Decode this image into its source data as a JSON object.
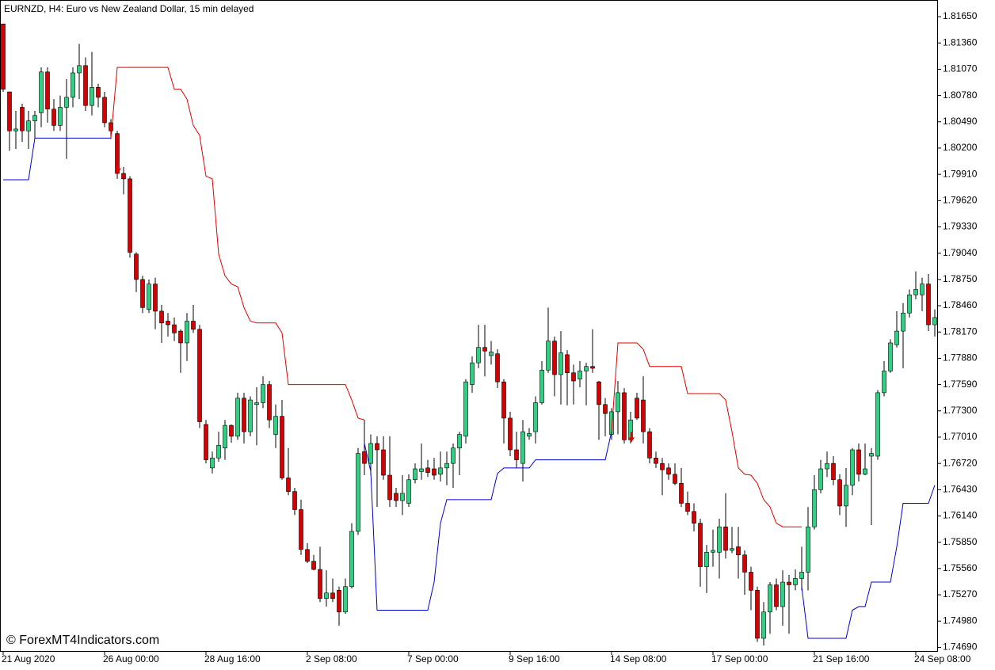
{
  "chart_data": {
    "type": "candlestick",
    "title": "EURNZD, H4:  Euro vs New Zealand Dollar, 15 min delayed",
    "watermark": "© ForexMT4Indicators.com",
    "categories": [
      "21 Aug 2020",
      null,
      null,
      null,
      null,
      null,
      null,
      null,
      null,
      null,
      null,
      null,
      null,
      null,
      null,
      null,
      "26 Aug 00:00",
      null,
      null,
      null,
      null,
      null,
      null,
      null,
      null,
      null,
      null,
      null,
      null,
      null,
      null,
      null,
      "28 Aug 16:00",
      null,
      null,
      null,
      null,
      null,
      null,
      null,
      null,
      null,
      null,
      null,
      null,
      null,
      null,
      null,
      "2 Sep 08:00",
      null,
      null,
      null,
      null,
      null,
      null,
      null,
      null,
      null,
      null,
      null,
      null,
      null,
      null,
      null,
      "7 Sep 00:00",
      null,
      null,
      null,
      null,
      null,
      null,
      null,
      null,
      null,
      null,
      null,
      null,
      null,
      null,
      null,
      "9 Sep 16:00",
      null,
      null,
      null,
      null,
      null,
      null,
      null,
      null,
      null,
      null,
      null,
      null,
      null,
      null,
      null,
      "14 Sep 08:00",
      null,
      null,
      null,
      null,
      null,
      null,
      null,
      null,
      null,
      null,
      null,
      null,
      null,
      null,
      null,
      "17 Sep 00:00",
      null,
      null,
      null,
      null,
      null,
      null,
      null,
      null,
      null,
      null,
      null,
      null,
      null,
      null,
      null,
      "21 Sep 16:00",
      null,
      null,
      null,
      null,
      null,
      null,
      null,
      null,
      null,
      null,
      null,
      null,
      null,
      null,
      null,
      "24 Sep 08:00",
      null,
      null,
      null
    ],
    "open": [
      1.8157,
      1.8082,
      1.8039,
      1.8065,
      1.8039,
      1.805,
      1.8059,
      1.8104,
      1.8063,
      1.8045,
      1.8065,
      1.8076,
      1.8103,
      1.8111,
      1.8067,
      1.8087,
      1.8076,
      1.8048,
      1.8036,
      1.7992,
      1.7986,
      1.7903,
      1.7875,
      1.7842,
      1.787,
      1.784,
      1.7829,
      1.7825,
      1.7818,
      1.7805,
      1.7829,
      1.782,
      1.7715,
      1.7667,
      1.7678,
      1.7689,
      1.7714,
      1.7702,
      1.7744,
      1.7707,
      1.7737,
      1.7739,
      1.7759,
      1.7704,
      1.7724,
      1.7656,
      1.7641,
      1.7621,
      1.7577,
      1.7564,
      1.7555,
      1.7523,
      1.7529,
      1.7532,
      1.7508,
      1.7536,
      1.7597,
      1.7685,
      1.7672,
      1.7694,
      1.7687,
      1.7659,
      1.7639,
      1.7631,
      1.7628,
      1.7654,
      1.7663,
      1.7667,
      1.7666,
      1.766,
      1.7667,
      1.7672,
      1.7689,
      1.7702,
      1.7759,
      1.7783,
      1.78,
      1.7791,
      1.7793,
      1.7762,
      1.7722,
      1.7687,
      1.7672,
      1.7702,
      1.7707,
      1.7739,
      1.7775,
      1.7807,
      1.777,
      1.7792,
      1.7772,
      1.7765,
      1.7774,
      1.7779,
      1.7762,
      1.7737,
      1.7704,
      1.7729,
      1.775,
      1.7698,
      1.7744,
      1.7742,
      1.7707,
      1.7678,
      1.7672,
      1.7667,
      1.766,
      1.765,
      1.7628,
      1.7619,
      1.7606,
      1.7558,
      1.7574,
      1.7574,
      1.7602,
      1.7576,
      1.758,
      1.7571,
      1.7552,
      1.7532,
      1.7479,
      1.7508,
      1.7538,
      1.7514,
      1.7541,
      1.7538,
      1.7545,
      1.7552,
      1.7602,
      1.7643,
      1.7666,
      1.7672,
      1.7654,
      1.7625,
      1.7648,
      1.7687,
      1.766,
      1.768,
      1.768,
      1.775,
      1.7774,
      1.7803,
      1.7818,
      1.7838,
      1.7858,
      1.7858,
      1.787,
      1.7825
    ],
    "high": [
      1.8157,
      1.8082,
      1.8061,
      1.8069,
      1.8061,
      1.8061,
      1.8109,
      1.8109,
      1.8074,
      1.8078,
      1.8096,
      1.8109,
      1.8135,
      1.812,
      1.8126,
      1.8091,
      1.8082,
      1.8052,
      1.8039,
      1.7999,
      1.7989,
      1.7905,
      1.7879,
      1.7875,
      1.7877,
      1.7847,
      1.7838,
      1.7833,
      1.782,
      1.7838,
      1.7847,
      1.7825,
      1.772,
      1.7685,
      1.7707,
      1.772,
      1.7715,
      1.775,
      1.775,
      1.7746,
      1.7756,
      1.7768,
      1.7763,
      1.7737,
      1.7742,
      1.7689,
      1.7645,
      1.7632,
      1.7584,
      1.7571,
      1.758,
      1.7554,
      1.7545,
      1.7536,
      1.7545,
      1.7606,
      1.7689,
      1.772,
      1.7704,
      1.7702,
      1.7702,
      1.7702,
      1.7645,
      1.7659,
      1.766,
      1.7672,
      1.7694,
      1.7676,
      1.7678,
      1.7685,
      1.7685,
      1.7694,
      1.7707,
      1.7765,
      1.779,
      1.7825,
      1.7825,
      1.7807,
      1.7798,
      1.7765,
      1.7729,
      1.7707,
      1.772,
      1.7711,
      1.7746,
      1.7785,
      1.7844,
      1.7812,
      1.7818,
      1.7797,
      1.7781,
      1.7785,
      1.7783,
      1.782,
      1.7763,
      1.7744,
      1.7733,
      1.7763,
      1.7755,
      1.7729,
      1.775,
      1.7768,
      1.7711,
      1.7685,
      1.7678,
      1.7672,
      1.7672,
      1.7667,
      1.7641,
      1.7628,
      1.7611,
      1.7582,
      1.7599,
      1.7611,
      1.7639,
      1.7602,
      1.7602,
      1.7576,
      1.7558,
      1.7536,
      1.7519,
      1.7541,
      1.7545,
      1.7554,
      1.7549,
      1.7555,
      1.758,
      1.7624,
      1.7659,
      1.7676,
      1.7685,
      1.768,
      1.766,
      1.7667,
      1.7689,
      1.7694,
      1.7694,
      1.7689,
      1.7753,
      1.7785,
      1.7809,
      1.784,
      1.7849,
      1.7864,
      1.7884,
      1.7877,
      1.7881,
      1.7842
    ],
    "low": [
      1.8082,
      1.8017,
      1.8019,
      1.8027,
      1.8019,
      1.803,
      1.8043,
      1.8048,
      1.8039,
      1.8039,
      1.8008,
      1.8065,
      1.8074,
      1.8061,
      1.8056,
      1.8065,
      1.8043,
      1.803,
      1.7986,
      1.7969,
      1.7899,
      1.7861,
      1.7838,
      1.7838,
      1.782,
      1.7805,
      1.7812,
      1.7807,
      1.7772,
      1.7785,
      1.7816,
      1.7711,
      1.7672,
      1.7661,
      1.7674,
      1.7676,
      1.7695,
      1.7698,
      1.7694,
      1.7702,
      1.7692,
      1.7733,
      1.7711,
      1.7689,
      1.7654,
      1.7637,
      1.7615,
      1.7571,
      1.7562,
      1.7554,
      1.7519,
      1.7514,
      1.7519,
      1.7493,
      1.7506,
      1.7534,
      1.7593,
      1.7659,
      1.7659,
      1.7624,
      1.7654,
      1.7624,
      1.7624,
      1.7615,
      1.7624,
      1.765,
      1.7654,
      1.7657,
      1.7654,
      1.7652,
      1.7648,
      1.7645,
      1.7659,
      1.7694,
      1.775,
      1.7777,
      1.7768,
      1.7781,
      1.7755,
      1.7694,
      1.768,
      1.7667,
      1.7652,
      1.7698,
      1.7694,
      1.7737,
      1.7772,
      1.7746,
      1.7737,
      1.7736,
      1.7737,
      1.7756,
      1.7736,
      1.7772,
      1.7698,
      1.7702,
      1.7698,
      1.7704,
      1.7694,
      1.7694,
      1.772,
      1.7694,
      1.7672,
      1.7667,
      1.7637,
      1.7654,
      1.7648,
      1.7624,
      1.7615,
      1.7597,
      1.7536,
      1.7529,
      1.7558,
      1.7545,
      1.7567,
      1.7573,
      1.7545,
      1.7527,
      1.751,
      1.7475,
      1.7471,
      1.7484,
      1.751,
      1.7493,
      1.7484,
      1.7532,
      1.7532,
      1.7532,
      1.7599,
      1.7639,
      1.7657,
      1.7648,
      1.7615,
      1.7602,
      1.7637,
      1.7652,
      1.7659,
      1.7604,
      1.7676,
      1.7746,
      1.7772,
      1.78,
      1.7777,
      1.7833,
      1.7853,
      1.784,
      1.7818,
      1.7812
    ],
    "close": [
      1.8085,
      1.8039,
      1.8041,
      1.8039,
      1.805,
      1.8056,
      1.8104,
      1.8063,
      1.8045,
      1.8065,
      1.8076,
      1.8103,
      1.8111,
      1.8067,
      1.8087,
      1.8076,
      1.8048,
      1.8039,
      1.7992,
      1.7986,
      1.7905,
      1.7875,
      1.7844,
      1.787,
      1.784,
      1.7827,
      1.7825,
      1.7816,
      1.7805,
      1.7829,
      1.782,
      1.7718,
      1.7676,
      1.7678,
      1.7692,
      1.7714,
      1.7702,
      1.7744,
      1.7707,
      1.7742,
      1.7739,
      1.7759,
      1.772,
      1.7724,
      1.7656,
      1.7641,
      1.7621,
      1.7577,
      1.7564,
      1.7555,
      1.7523,
      1.7529,
      1.7523,
      1.7508,
      1.7536,
      1.7597,
      1.7683,
      1.7672,
      1.7694,
      1.7687,
      1.7659,
      1.7632,
      1.7631,
      1.7639,
      1.7654,
      1.7666,
      1.7666,
      1.7662,
      1.7659,
      1.7667,
      1.7672,
      1.7689,
      1.7704,
      1.7762,
      1.7783,
      1.78,
      1.7796,
      1.7795,
      1.7762,
      1.7722,
      1.7687,
      1.7676,
      1.7707,
      1.7705,
      1.7739,
      1.7775,
      1.7807,
      1.777,
      1.7794,
      1.7772,
      1.7763,
      1.7774,
      1.7779,
      1.7777,
      1.7737,
      1.7727,
      1.7729,
      1.775,
      1.7698,
      1.772,
      1.7722,
      1.7707,
      1.7678,
      1.7672,
      1.7665,
      1.766,
      1.765,
      1.7628,
      1.7619,
      1.7606,
      1.7558,
      1.7574,
      1.7576,
      1.7602,
      1.7576,
      1.7578,
      1.7571,
      1.7552,
      1.7532,
      1.7479,
      1.7508,
      1.7538,
      1.7514,
      1.7541,
      1.7538,
      1.7545,
      1.7552,
      1.7602,
      1.7643,
      1.7666,
      1.7672,
      1.7654,
      1.7625,
      1.7648,
      1.7687,
      1.766,
      1.7666,
      1.7683,
      1.775,
      1.7774,
      1.7805,
      1.7818,
      1.7838,
      1.7858,
      1.7864,
      1.787,
      1.7825,
      1.7833
    ],
    "up_color": "#2fd180",
    "down_color": "#d60000",
    "wick_color": "#000000",
    "upper_line": {
      "color": "#e00000",
      "values": [
        null,
        null,
        null,
        null,
        null,
        null,
        null,
        null,
        null,
        null,
        null,
        null,
        null,
        null,
        null,
        null,
        null,
        1.8031,
        1.8109,
        1.8109,
        1.8109,
        1.8109,
        1.8109,
        1.8109,
        1.8109,
        1.8109,
        1.8109,
        1.8085,
        1.8085,
        1.8074,
        1.8045,
        1.8034,
        1.7989,
        1.7986,
        1.7903,
        1.7879,
        1.787,
        1.7867,
        1.7844,
        1.7829,
        1.7827,
        1.7827,
        1.7827,
        1.7827,
        1.7816,
        1.7759,
        1.7759,
        1.7759,
        1.7759,
        1.7759,
        1.7759,
        1.7759,
        1.7759,
        1.7759,
        1.7759,
        1.7742,
        1.7722,
        1.772,
        null,
        null,
        null,
        null,
        null,
        null,
        null,
        null,
        null,
        null,
        null,
        null,
        null,
        null,
        null,
        null,
        null,
        null,
        null,
        null,
        null,
        null,
        null,
        null,
        null,
        null,
        null,
        null,
        null,
        null,
        null,
        null,
        null,
        null,
        null,
        null,
        null,
        null,
        1.7707,
        1.7805,
        1.7805,
        1.7805,
        1.7805,
        1.7798,
        1.7779,
        1.7779,
        1.7779,
        1.7779,
        1.7779,
        1.7779,
        1.7749,
        1.7749,
        1.7749,
        1.7749,
        1.7749,
        1.7749,
        1.7742,
        1.7707,
        1.7667,
        1.766,
        1.7659,
        1.765,
        1.7632,
        1.7624,
        1.7606,
        1.7602,
        1.7602,
        1.7602,
        1.7602,
        null,
        null,
        null,
        null,
        null,
        null,
        null,
        null,
        null,
        null,
        null,
        null,
        null,
        null,
        null,
        null,
        null,
        null,
        null,
        null,
        null
      ]
    },
    "lower_line": {
      "color": "#0000d0",
      "values": [
        1.7985,
        1.7985,
        1.7985,
        1.7985,
        1.7985,
        1.8031,
        1.8031,
        1.8031,
        1.8031,
        1.8031,
        1.8031,
        1.8031,
        1.8031,
        1.8031,
        1.8031,
        1.8031,
        1.8031,
        1.8031,
        null,
        null,
        null,
        null,
        null,
        null,
        null,
        null,
        null,
        null,
        null,
        null,
        null,
        null,
        null,
        null,
        null,
        null,
        null,
        null,
        null,
        null,
        null,
        null,
        null,
        null,
        null,
        null,
        null,
        null,
        null,
        null,
        null,
        null,
        null,
        null,
        null,
        null,
        null,
        1.7694,
        1.7663,
        1.751,
        1.751,
        1.751,
        1.751,
        1.751,
        1.751,
        1.751,
        1.751,
        1.751,
        1.7541,
        1.7606,
        1.7632,
        1.7632,
        1.7632,
        1.7632,
        1.7632,
        1.7632,
        1.7632,
        1.7632,
        1.7661,
        1.7667,
        1.7667,
        1.7667,
        1.7667,
        1.7667,
        1.7676,
        1.7676,
        1.7676,
        1.7676,
        1.7676,
        1.7676,
        1.7676,
        1.7676,
        1.7676,
        1.7676,
        1.7676,
        1.7676,
        1.7707,
        null,
        null,
        null,
        null,
        null,
        null,
        null,
        null,
        null,
        null,
        null,
        null,
        null,
        null,
        null,
        null,
        null,
        null,
        null,
        null,
        null,
        null,
        null,
        null,
        null,
        null,
        null,
        null,
        null,
        1.7536,
        1.7479,
        1.7479,
        1.7479,
        1.7479,
        1.7479,
        1.7479,
        1.7479,
        1.751,
        1.7514,
        1.7514,
        1.7541,
        1.7541,
        1.7541,
        1.7541,
        1.758,
        1.7628,
        1.7628,
        1.7628,
        1.7628,
        1.7628,
        1.7648
      ]
    },
    "arrows": {
      "color": "#e00000",
      "values": [
        null,
        null,
        null,
        null,
        null,
        null,
        null,
        null,
        null,
        null,
        null,
        null,
        null,
        null,
        null,
        null,
        null,
        null,
        1.7995,
        null,
        null,
        null,
        null,
        null,
        null,
        null,
        null,
        null,
        null,
        null,
        null,
        null,
        null,
        null,
        null,
        null,
        null,
        null,
        null,
        null,
        null,
        null,
        null,
        null,
        null,
        null,
        null,
        null,
        null,
        null,
        null,
        null,
        null,
        null,
        null,
        null,
        null,
        null,
        null,
        null,
        null,
        null,
        null,
        null,
        null,
        null,
        null,
        null,
        null,
        null,
        null,
        null,
        null,
        null,
        null,
        null,
        null,
        null,
        null,
        null,
        null,
        null,
        null,
        null,
        null,
        null,
        null,
        null,
        null,
        null,
        null,
        null,
        null,
        null,
        null,
        null,
        null,
        null,
        null,
        1.7698,
        null,
        null,
        null,
        null,
        null,
        null,
        null,
        null,
        null,
        null,
        null,
        null,
        null,
        null,
        null,
        null,
        null,
        null,
        null,
        null,
        null,
        null,
        null,
        null,
        null,
        null,
        null,
        null,
        null,
        null,
        null,
        null,
        null,
        null,
        null,
        null,
        null,
        null,
        null,
        null,
        null,
        null,
        null,
        null,
        null,
        null,
        null,
        null
      ]
    },
    "ylim": [
      1.7465,
      1.81834
    ],
    "yticks": [
      {
        "value": 1.8165,
        "label": "1.81650"
      },
      {
        "value": 1.8136,
        "label": "1.81360"
      },
      {
        "value": 1.8107,
        "label": "1.81070"
      },
      {
        "value": 1.8078,
        "label": "1.80780"
      },
      {
        "value": 1.8049,
        "label": "1.80490"
      },
      {
        "value": 1.802,
        "label": "1.80200"
      },
      {
        "value": 1.7991,
        "label": "1.79910"
      },
      {
        "value": 1.7962,
        "label": "1.79620"
      },
      {
        "value": 1.7933,
        "label": "1.79330"
      },
      {
        "value": 1.7904,
        "label": "1.79040"
      },
      {
        "value": 1.7875,
        "label": "1.78750"
      },
      {
        "value": 1.7846,
        "label": "1.78460"
      },
      {
        "value": 1.7817,
        "label": "1.78170"
      },
      {
        "value": 1.7788,
        "label": "1.77880"
      },
      {
        "value": 1.7759,
        "label": "1.77590"
      },
      {
        "value": 1.773,
        "label": "1.77300"
      },
      {
        "value": 1.7701,
        "label": "1.77010"
      },
      {
        "value": 1.7672,
        "label": "1.76720"
      },
      {
        "value": 1.7643,
        "label": "1.76430"
      },
      {
        "value": 1.7614,
        "label": "1.76140"
      },
      {
        "value": 1.7585,
        "label": "1.75850"
      },
      {
        "value": 1.7556,
        "label": "1.75560"
      },
      {
        "value": 1.7527,
        "label": "1.75270"
      },
      {
        "value": 1.7498,
        "label": "1.74980"
      },
      {
        "value": 1.7469,
        "label": "1.74690"
      }
    ]
  }
}
